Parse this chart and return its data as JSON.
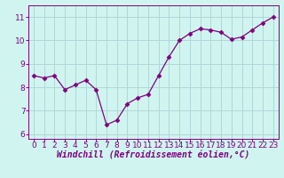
{
  "x": [
    0,
    1,
    2,
    3,
    4,
    5,
    6,
    7,
    8,
    9,
    10,
    11,
    12,
    13,
    14,
    15,
    16,
    17,
    18,
    19,
    20,
    21,
    22,
    23
  ],
  "y": [
    8.5,
    8.4,
    8.5,
    7.9,
    8.1,
    8.3,
    7.9,
    6.4,
    6.6,
    7.3,
    7.55,
    7.7,
    8.5,
    9.3,
    10.0,
    10.3,
    10.5,
    10.45,
    10.35,
    10.05,
    10.15,
    10.45,
    10.75,
    11.0
  ],
  "line_color": "#800080",
  "marker": "D",
  "marker_size": 2.5,
  "bg_color": "#d0f5f0",
  "grid_color": "#b0d8d8",
  "xlabel": "Windchill (Refroidissement éolien,°C)",
  "xlabel_color": "#800080",
  "xlabel_fontsize": 7,
  "tick_color": "#800080",
  "tick_fontsize": 6.5,
  "ylim": [
    5.8,
    11.5
  ],
  "xlim": [
    -0.5,
    23.5
  ],
  "yticks": [
    6,
    7,
    8,
    9,
    10,
    11
  ],
  "xticks": [
    0,
    1,
    2,
    3,
    4,
    5,
    6,
    7,
    8,
    9,
    10,
    11,
    12,
    13,
    14,
    15,
    16,
    17,
    18,
    19,
    20,
    21,
    22,
    23
  ]
}
